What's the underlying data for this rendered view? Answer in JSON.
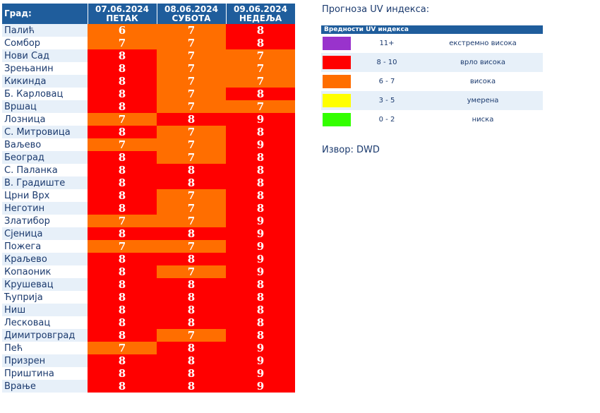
{
  "colors": {
    "header": "#1f5d9c",
    "orange": "#ff6e00",
    "red": "#ff0000",
    "yellow": "#ffff00",
    "green": "#33ff00",
    "purple": "#9933cc"
  },
  "forecast": {
    "city_header": "Град:",
    "days": [
      {
        "date": "07.06.2024",
        "weekday": "ПЕТАК"
      },
      {
        "date": "08.06.2024",
        "weekday": "СУБОТА"
      },
      {
        "date": "09.06.2024",
        "weekday": "НЕДЕЉА"
      }
    ],
    "rows": [
      {
        "city": "Палић",
        "values": [
          6,
          7,
          8
        ]
      },
      {
        "city": "Сомбор",
        "values": [
          7,
          7,
          8
        ]
      },
      {
        "city": "Нови Сад",
        "values": [
          8,
          7,
          7
        ]
      },
      {
        "city": "Зрењанин",
        "values": [
          8,
          7,
          7
        ]
      },
      {
        "city": "Кикинда",
        "values": [
          8,
          7,
          7
        ]
      },
      {
        "city": "Б. Карловац",
        "values": [
          8,
          7,
          8
        ]
      },
      {
        "city": "Вршац",
        "values": [
          8,
          7,
          7
        ]
      },
      {
        "city": "Лозница",
        "values": [
          7,
          8,
          9
        ]
      },
      {
        "city": "С. Митровица",
        "values": [
          8,
          7,
          8
        ]
      },
      {
        "city": "Ваљево",
        "values": [
          7,
          7,
          9
        ]
      },
      {
        "city": "Београд",
        "values": [
          8,
          7,
          8
        ]
      },
      {
        "city": "С. Паланка",
        "values": [
          8,
          8,
          8
        ]
      },
      {
        "city": "В. Градиште",
        "values": [
          8,
          8,
          8
        ]
      },
      {
        "city": "Црни Врх",
        "values": [
          8,
          7,
          8
        ]
      },
      {
        "city": "Неготин",
        "values": [
          8,
          7,
          8
        ]
      },
      {
        "city": "Златибор",
        "values": [
          7,
          7,
          9
        ]
      },
      {
        "city": "Сјеница",
        "values": [
          8,
          8,
          9
        ]
      },
      {
        "city": "Пожега",
        "values": [
          7,
          7,
          9
        ]
      },
      {
        "city": "Краљево",
        "values": [
          8,
          8,
          9
        ]
      },
      {
        "city": "Копаоник",
        "values": [
          8,
          7,
          9
        ]
      },
      {
        "city": "Крушевац",
        "values": [
          8,
          8,
          8
        ]
      },
      {
        "city": "Ћуприја",
        "values": [
          8,
          8,
          8
        ]
      },
      {
        "city": "Ниш",
        "values": [
          8,
          8,
          8
        ]
      },
      {
        "city": "Лесковац",
        "values": [
          8,
          8,
          8
        ]
      },
      {
        "city": "Димитровград",
        "values": [
          8,
          7,
          8
        ]
      },
      {
        "city": "Пећ",
        "values": [
          7,
          8,
          9
        ]
      },
      {
        "city": "Призрен",
        "values": [
          8,
          8,
          9
        ]
      },
      {
        "city": "Приштина",
        "values": [
          8,
          8,
          9
        ]
      },
      {
        "city": "Врање",
        "values": [
          8,
          8,
          9
        ]
      }
    ]
  },
  "legend": {
    "title": "Прогноза UV индекса:",
    "table_header": "Вредности UV индекса",
    "entries": [
      {
        "range": "11+",
        "label": "екстремно висока",
        "color": "#9933cc"
      },
      {
        "range": "8 - 10",
        "label": "врло висока",
        "color": "#ff0000"
      },
      {
        "range": "6 - 7",
        "label": "висока",
        "color": "#ff6e00"
      },
      {
        "range": "3 - 5",
        "label": "умерена",
        "color": "#ffff00"
      },
      {
        "range": "0 - 2",
        "label": "ниска",
        "color": "#33ff00"
      }
    ]
  },
  "source": "Извор: DWD"
}
